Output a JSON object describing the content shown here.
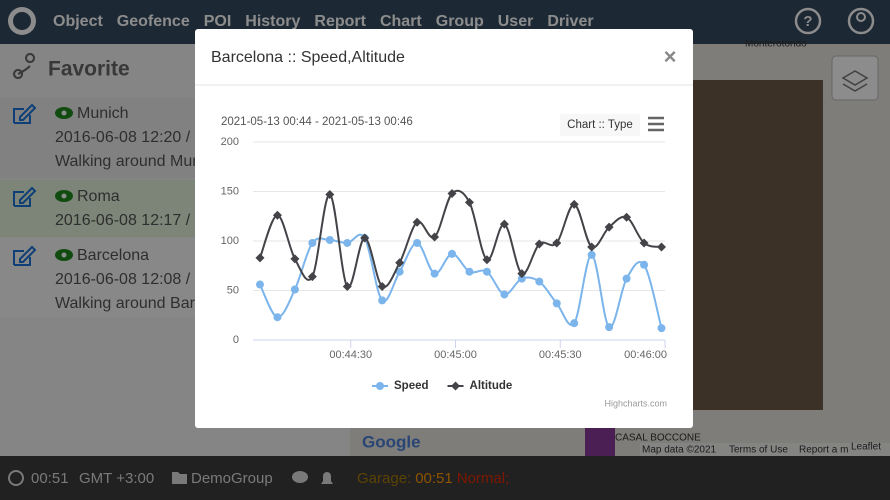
{
  "nav": {
    "items": [
      "Object",
      "Geofence",
      "POI",
      "History",
      "Report",
      "Chart",
      "Group",
      "User",
      "Driver"
    ]
  },
  "sidebar": {
    "title": "Favorite",
    "items": [
      {
        "name": "Munich",
        "time": "2016-06-08 12:20 /",
        "note": "Walking around Mun"
      },
      {
        "name": "Roma",
        "time": "2016-06-08 12:17 /"
      },
      {
        "name": "Barcelona",
        "time": "2016-06-08 12:08 /",
        "note": "Walking around Bar"
      }
    ]
  },
  "statusbar": {
    "time": "00:51",
    "timezone": "GMT +3:00",
    "group": "DemoGroup",
    "garage_label": "Garage:",
    "garage_time": "00:51",
    "garage_state": "Normal;"
  },
  "map": {
    "places": [
      "Monterotondo",
      "CASAL BOCCONE"
    ],
    "attribution": [
      "Map data ©2021",
      "Terms of Use",
      "Report a m",
      "Leaflet"
    ],
    "logo": "Google"
  },
  "modal": {
    "title": "Barcelona :: Speed,Altitude",
    "close": "×"
  },
  "chart_data": {
    "type": "line",
    "title": "2021-05-13 00:44 - 2021-05-13 00:46",
    "menu_label": "Chart :: Type",
    "credits": "Highcharts.com",
    "x": [
      "00:44:04",
      "00:44:09",
      "00:44:14",
      "00:44:19",
      "00:44:24",
      "00:44:29",
      "00:44:34",
      "00:44:39",
      "00:44:44",
      "00:44:49",
      "00:44:54",
      "00:44:59",
      "00:45:04",
      "00:45:09",
      "00:45:14",
      "00:45:19",
      "00:45:24",
      "00:45:29",
      "00:45:34",
      "00:45:39",
      "00:45:44",
      "00:45:49",
      "00:45:54",
      "00:45:59"
    ],
    "xlim": [
      "00:44:02",
      "00:46:00"
    ],
    "xticks": [
      "00:44:30",
      "00:45:00",
      "00:45:30",
      "00:46:00"
    ],
    "ylim": [
      0,
      200
    ],
    "yticks": [
      0,
      50,
      100,
      150,
      200
    ],
    "grid": true,
    "smooth": true,
    "series": [
      {
        "name": "Speed",
        "color": "#7cb5ec",
        "marker": "circle",
        "values": [
          56,
          23,
          51,
          98,
          101,
          98,
          103,
          40,
          69,
          98,
          67,
          87,
          69,
          69,
          46,
          62,
          59,
          37,
          17,
          86,
          13,
          62,
          76,
          12
        ]
      },
      {
        "name": "Altitude",
        "color": "#434348",
        "marker": "diamond",
        "values": [
          83,
          126,
          82,
          64,
          147,
          54,
          103,
          54,
          78,
          119,
          104,
          148,
          139,
          81,
          117,
          67,
          97,
          98,
          137,
          94,
          114,
          124,
          98,
          94
        ]
      }
    ]
  }
}
